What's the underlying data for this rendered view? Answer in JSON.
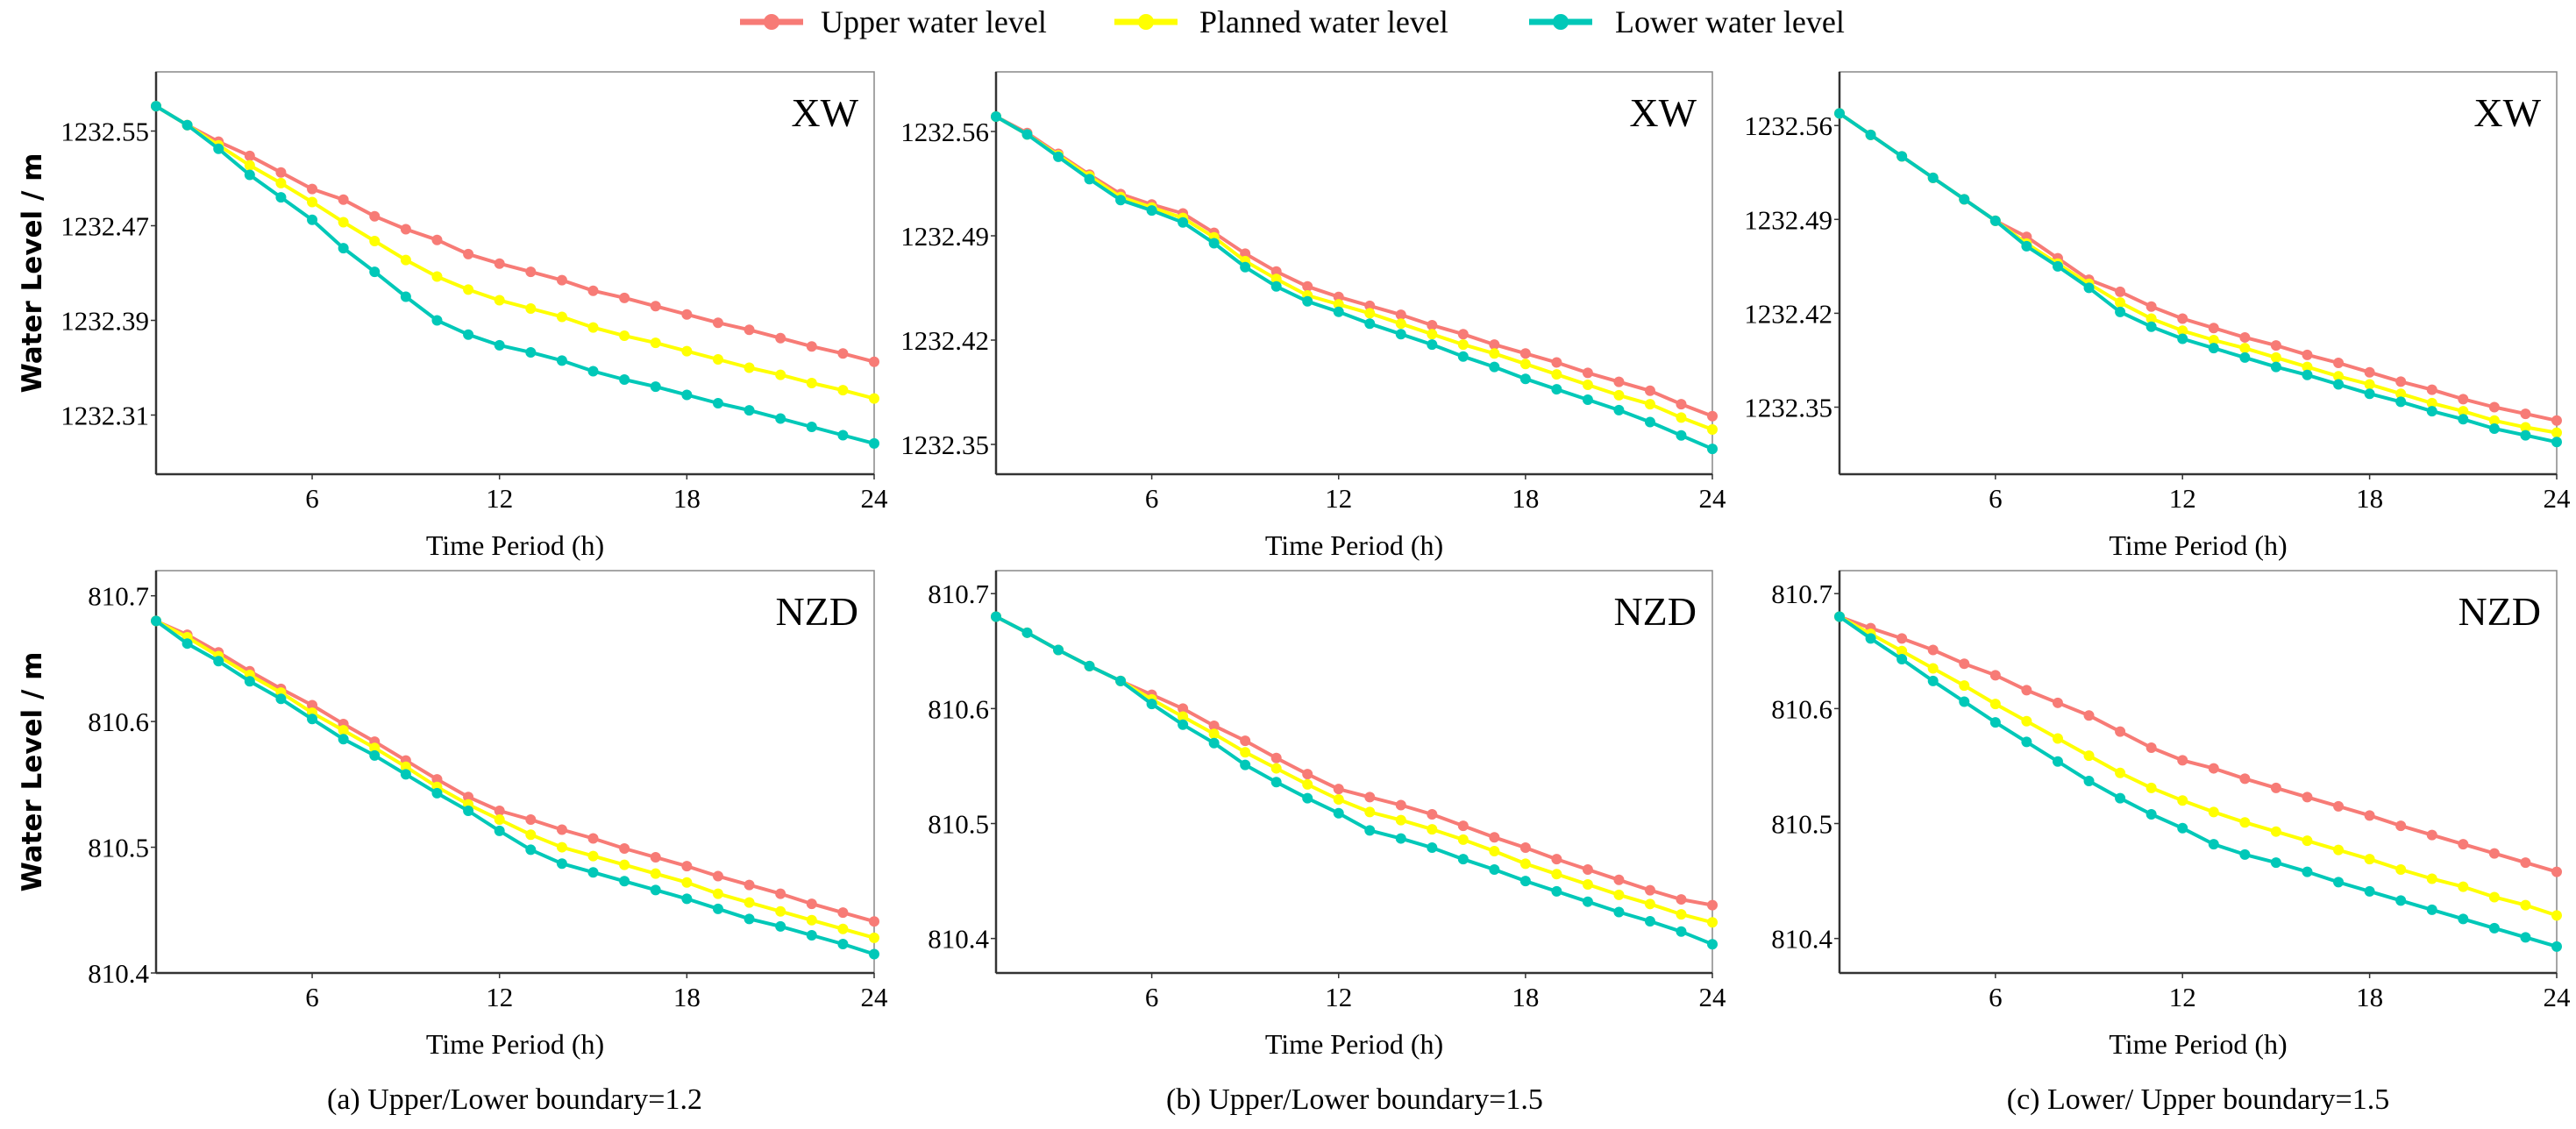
{
  "legend": [
    {
      "label": "Upper water level",
      "color": "#F77B76"
    },
    {
      "label": "Planned water level",
      "color": "#FFFF00"
    },
    {
      "label": "Lower water level",
      "color": "#00C8B8"
    }
  ],
  "captions": [
    "(a) Upper/Lower boundary=1.2",
    "(b) Upper/Lower boundary=1.5",
    "(c) Lower/ Upper boundary=1.5"
  ],
  "chart_data": [
    {
      "type": "line",
      "panel": "a-top",
      "title": "XW",
      "xlabel": "Time Period  (h)",
      "ylabel": "Water Level / m",
      "x": [
        1,
        2,
        3,
        4,
        5,
        6,
        7,
        8,
        9,
        10,
        11,
        12,
        13,
        14,
        15,
        16,
        17,
        18,
        19,
        20,
        21,
        22,
        23,
        24
      ],
      "xlim": [
        1,
        24
      ],
      "xticks": [
        "6",
        "12",
        "18",
        "24"
      ],
      "ylim": [
        1232.26,
        1232.6
      ],
      "yticks": [
        "1232.31",
        "1232.39",
        "1232.47",
        "1232.55"
      ],
      "series": [
        {
          "name": "Upper water level",
          "values": [
            1232.571,
            1232.555,
            1232.541,
            1232.529,
            1232.515,
            1232.501,
            1232.492,
            1232.478,
            1232.467,
            1232.458,
            1232.446,
            1232.438,
            1232.431,
            1232.424,
            1232.415,
            1232.409,
            1232.402,
            1232.395,
            1232.388,
            1232.382,
            1232.375,
            1232.368,
            1232.362,
            1232.355
          ]
        },
        {
          "name": "Planned water level",
          "values": [
            1232.571,
            1232.555,
            1232.538,
            1232.521,
            1232.506,
            1232.49,
            1232.473,
            1232.457,
            1232.441,
            1232.427,
            1232.416,
            1232.407,
            1232.4,
            1232.393,
            1232.384,
            1232.377,
            1232.371,
            1232.364,
            1232.357,
            1232.35,
            1232.344,
            1232.337,
            1232.331,
            1232.324
          ]
        },
        {
          "name": "Lower water level",
          "values": [
            1232.571,
            1232.555,
            1232.535,
            1232.513,
            1232.494,
            1232.475,
            1232.451,
            1232.431,
            1232.41,
            1232.39,
            1232.378,
            1232.369,
            1232.363,
            1232.356,
            1232.347,
            1232.34,
            1232.334,
            1232.327,
            1232.32,
            1232.314,
            1232.307,
            1232.3,
            1232.293,
            1232.286
          ]
        }
      ]
    },
    {
      "type": "line",
      "panel": "b-top",
      "title": "XW",
      "xlabel": "Time Period  (h)",
      "ylabel": "",
      "x": [
        1,
        2,
        3,
        4,
        5,
        6,
        7,
        8,
        9,
        10,
        11,
        12,
        13,
        14,
        15,
        16,
        17,
        18,
        19,
        20,
        21,
        22,
        23,
        24
      ],
      "xlim": [
        1,
        24
      ],
      "xticks": [
        "6",
        "12",
        "18",
        "24"
      ],
      "ylim": [
        1232.33,
        1232.6
      ],
      "yticks": [
        "1232.35",
        "1232.42",
        "1232.49",
        "1232.56"
      ],
      "series": [
        {
          "name": "Upper water level",
          "values": [
            1232.57,
            1232.559,
            1232.545,
            1232.531,
            1232.518,
            1232.511,
            1232.505,
            1232.492,
            1232.478,
            1232.466,
            1232.456,
            1232.449,
            1232.443,
            1232.437,
            1232.43,
            1232.424,
            1232.417,
            1232.411,
            1232.405,
            1232.398,
            1232.392,
            1232.386,
            1232.377,
            1232.369
          ]
        },
        {
          "name": "Planned water level",
          "values": [
            1232.57,
            1232.558,
            1232.544,
            1232.53,
            1232.516,
            1232.509,
            1232.502,
            1232.489,
            1232.473,
            1232.461,
            1232.45,
            1232.444,
            1232.438,
            1232.431,
            1232.424,
            1232.417,
            1232.411,
            1232.404,
            1232.397,
            1232.39,
            1232.383,
            1232.377,
            1232.368,
            1232.36
          ]
        },
        {
          "name": "Lower water level",
          "values": [
            1232.57,
            1232.558,
            1232.543,
            1232.528,
            1232.514,
            1232.507,
            1232.499,
            1232.485,
            1232.469,
            1232.456,
            1232.446,
            1232.439,
            1232.431,
            1232.424,
            1232.417,
            1232.409,
            1232.402,
            1232.394,
            1232.387,
            1232.38,
            1232.373,
            1232.365,
            1232.356,
            1232.347
          ]
        }
      ]
    },
    {
      "type": "line",
      "panel": "c-top",
      "title": "XW",
      "xlabel": "Time Period  (h)",
      "ylabel": "",
      "x": [
        1,
        2,
        3,
        4,
        5,
        6,
        7,
        8,
        9,
        10,
        11,
        12,
        13,
        14,
        15,
        16,
        17,
        18,
        19,
        20,
        21,
        22,
        23,
        24
      ],
      "xlim": [
        1,
        24
      ],
      "xticks": [
        "6",
        "12",
        "18",
        "24"
      ],
      "ylim": [
        1232.3,
        1232.6
      ],
      "yticks": [
        "1232.35",
        "1232.42",
        "1232.49",
        "1232.56"
      ],
      "series": [
        {
          "name": "Upper water level",
          "values": [
            1232.569,
            1232.553,
            1232.537,
            1232.521,
            1232.505,
            1232.489,
            1232.477,
            1232.461,
            1232.445,
            1232.436,
            1232.425,
            1232.416,
            1232.409,
            1232.402,
            1232.396,
            1232.389,
            1232.383,
            1232.376,
            1232.369,
            1232.363,
            1232.356,
            1232.35,
            1232.345,
            1232.34
          ]
        },
        {
          "name": "Planned water level",
          "values": [
            1232.569,
            1232.553,
            1232.537,
            1232.521,
            1232.505,
            1232.489,
            1232.472,
            1232.457,
            1232.442,
            1232.428,
            1232.416,
            1232.407,
            1232.4,
            1232.394,
            1232.387,
            1232.38,
            1232.373,
            1232.367,
            1232.36,
            1232.353,
            1232.347,
            1232.34,
            1232.335,
            1232.331
          ]
        },
        {
          "name": "Lower water level",
          "values": [
            1232.569,
            1232.553,
            1232.537,
            1232.521,
            1232.505,
            1232.489,
            1232.47,
            1232.455,
            1232.439,
            1232.421,
            1232.41,
            1232.401,
            1232.394,
            1232.387,
            1232.38,
            1232.374,
            1232.367,
            1232.36,
            1232.354,
            1232.347,
            1232.341,
            1232.334,
            1232.329,
            1232.324
          ]
        }
      ]
    },
    {
      "type": "line",
      "panel": "a-bottom",
      "title": "NZD",
      "xlabel": "Time Period  (h)",
      "ylabel": "Water Level / m",
      "x": [
        1,
        2,
        3,
        4,
        5,
        6,
        7,
        8,
        9,
        10,
        11,
        12,
        13,
        14,
        15,
        16,
        17,
        18,
        19,
        20,
        21,
        22,
        23,
        24
      ],
      "xlim": [
        1,
        24
      ],
      "xticks": [
        "6",
        "12",
        "18",
        "24"
      ],
      "ylim": [
        810.4,
        810.72
      ],
      "yticks": [
        "810.4",
        "810.5",
        "810.6",
        "810.7"
      ],
      "series": [
        {
          "name": "Upper water level",
          "values": [
            810.68,
            810.669,
            810.655,
            810.64,
            810.626,
            810.613,
            810.598,
            810.584,
            810.569,
            810.554,
            810.54,
            810.529,
            810.522,
            810.514,
            810.507,
            810.499,
            810.492,
            810.485,
            810.477,
            810.47,
            810.463,
            810.455,
            810.448,
            810.441
          ]
        },
        {
          "name": "Planned water level",
          "values": [
            810.68,
            810.667,
            810.652,
            810.637,
            810.623,
            810.607,
            810.593,
            810.579,
            810.564,
            810.548,
            810.534,
            810.522,
            810.51,
            810.5,
            810.493,
            810.486,
            810.479,
            810.472,
            810.463,
            810.456,
            810.449,
            810.442,
            810.435,
            810.428
          ]
        },
        {
          "name": "Lower water level",
          "values": [
            810.68,
            810.662,
            810.648,
            810.632,
            810.618,
            810.602,
            810.586,
            810.573,
            810.558,
            810.543,
            810.529,
            810.513,
            810.498,
            810.487,
            810.48,
            810.473,
            810.466,
            810.459,
            810.451,
            810.443,
            810.437,
            810.43,
            810.423,
            810.415
          ]
        }
      ]
    },
    {
      "type": "line",
      "panel": "b-bottom",
      "title": "NZD",
      "xlabel": "Time Period  (h)",
      "ylabel": "",
      "x": [
        1,
        2,
        3,
        4,
        5,
        6,
        7,
        8,
        9,
        10,
        11,
        12,
        13,
        14,
        15,
        16,
        17,
        18,
        19,
        20,
        21,
        22,
        23,
        24
      ],
      "xlim": [
        1,
        24
      ],
      "xticks": [
        "6",
        "12",
        "18",
        "24"
      ],
      "ylim": [
        810.37,
        810.72
      ],
      "yticks": [
        "810.4",
        "810.5",
        "810.6",
        "810.7"
      ],
      "series": [
        {
          "name": "Upper water level",
          "values": [
            810.68,
            810.666,
            810.651,
            810.637,
            810.624,
            810.612,
            810.6,
            810.585,
            810.572,
            810.557,
            810.543,
            810.53,
            810.523,
            810.516,
            810.508,
            810.498,
            810.488,
            810.479,
            810.469,
            810.46,
            810.451,
            810.442,
            810.434,
            810.429
          ]
        },
        {
          "name": "Planned water level",
          "values": [
            810.68,
            810.666,
            810.651,
            810.637,
            810.624,
            810.608,
            810.593,
            810.578,
            810.562,
            810.548,
            810.534,
            810.521,
            810.51,
            810.503,
            810.495,
            810.486,
            810.476,
            810.465,
            810.456,
            810.447,
            810.438,
            810.43,
            810.421,
            810.414
          ]
        },
        {
          "name": "Lower water level",
          "values": [
            810.68,
            810.666,
            810.651,
            810.637,
            810.624,
            810.604,
            810.586,
            810.57,
            810.551,
            810.536,
            810.522,
            810.509,
            810.494,
            810.487,
            810.479,
            810.469,
            810.46,
            810.45,
            810.441,
            810.432,
            810.423,
            810.415,
            810.406,
            810.395
          ]
        }
      ]
    },
    {
      "type": "line",
      "panel": "c-bottom",
      "title": "NZD",
      "xlabel": "Time Period  (h)",
      "ylabel": "",
      "x": [
        1,
        2,
        3,
        4,
        5,
        6,
        7,
        8,
        9,
        10,
        11,
        12,
        13,
        14,
        15,
        16,
        17,
        18,
        19,
        20,
        21,
        22,
        23,
        24
      ],
      "xlim": [
        1,
        24
      ],
      "xticks": [
        "6",
        "12",
        "18",
        "24"
      ],
      "ylim": [
        810.37,
        810.72
      ],
      "yticks": [
        "810.4",
        "810.5",
        "810.6",
        "810.7"
      ],
      "series": [
        {
          "name": "Upper water level",
          "values": [
            810.68,
            810.67,
            810.661,
            810.651,
            810.639,
            810.629,
            810.616,
            810.605,
            810.594,
            810.58,
            810.566,
            810.555,
            810.548,
            810.539,
            810.531,
            810.523,
            810.515,
            810.507,
            810.498,
            810.49,
            810.482,
            810.474,
            810.466,
            810.458
          ]
        },
        {
          "name": "Planned water level",
          "values": [
            810.68,
            810.665,
            810.65,
            810.635,
            810.62,
            810.604,
            810.589,
            810.574,
            810.559,
            810.544,
            810.531,
            810.52,
            810.51,
            810.501,
            810.493,
            810.485,
            810.477,
            810.469,
            810.46,
            810.452,
            810.445,
            810.436,
            810.429,
            810.42
          ]
        },
        {
          "name": "Lower water level",
          "values": [
            810.68,
            810.661,
            810.643,
            810.624,
            810.606,
            810.588,
            810.571,
            810.554,
            810.537,
            810.522,
            810.508,
            810.496,
            810.482,
            810.473,
            810.466,
            810.458,
            810.449,
            810.441,
            810.433,
            810.425,
            810.417,
            810.409,
            810.401,
            810.393
          ]
        }
      ]
    }
  ]
}
